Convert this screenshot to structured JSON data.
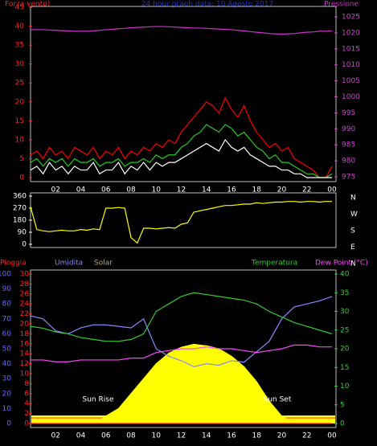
{
  "chart_data": [
    {
      "type": "line",
      "title": "24 hour graph data: 10 Agosto 2017",
      "y_label": "Forza vento)",
      "y2_label": "Pressione",
      "axis_colors": {
        "y": "#ff2222",
        "y2": "#cc44cc"
      },
      "x": [
        0,
        0.5,
        1,
        1.5,
        2,
        2.5,
        3,
        3.5,
        4,
        4.5,
        5,
        5.5,
        6,
        6.5,
        7,
        7.5,
        8,
        8.5,
        9,
        9.5,
        10,
        10.5,
        11,
        11.5,
        12,
        12.5,
        13,
        13.5,
        14,
        14.5,
        15,
        15.5,
        16,
        16.5,
        17,
        17.5,
        18,
        18.5,
        19,
        19.5,
        20,
        20.5,
        21,
        21.5,
        22,
        22.5,
        23,
        23.5,
        24
      ],
      "xlim": [
        0,
        24
      ],
      "xticks": [
        {
          "value": 2,
          "label": "02"
        },
        {
          "value": 4,
          "label": "04"
        },
        {
          "value": 6,
          "label": "06"
        },
        {
          "value": 8,
          "label": "08"
        },
        10,
        12,
        14,
        16,
        18,
        20,
        22,
        {
          "value": 24,
          "label": "00"
        }
      ],
      "ylim": [
        0,
        45
      ],
      "yticks": [
        0,
        5,
        10,
        15,
        20,
        25,
        30,
        35,
        40,
        45
      ],
      "y2lim": [
        975,
        1025
      ],
      "y2ticks": [
        975,
        980,
        985,
        990,
        995,
        1000,
        1005,
        1010,
        1015,
        1020,
        1025
      ],
      "series": [
        {
          "color": "#ff0000",
          "axis": "y",
          "values": [
            6,
            7,
            5,
            8,
            6,
            7,
            5,
            8,
            7,
            6,
            8,
            5,
            7,
            6,
            8,
            5,
            7,
            6,
            8,
            7,
            9,
            8,
            10,
            9,
            12,
            14,
            16,
            18,
            20,
            19,
            17,
            21,
            18,
            16,
            19,
            15,
            12,
            10,
            8,
            9,
            7,
            8,
            5,
            4,
            3,
            2,
            0,
            0,
            3
          ]
        },
        {
          "color": "#22cc22",
          "axis": "y",
          "values": [
            4,
            5,
            3,
            5,
            4,
            5,
            3,
            5,
            4,
            4,
            5,
            3,
            4,
            4,
            5,
            3,
            4,
            4,
            5,
            4,
            6,
            5,
            6,
            6,
            8,
            9,
            11,
            12,
            14,
            13,
            12,
            14,
            13,
            11,
            12,
            10,
            8,
            7,
            5,
            6,
            4,
            4,
            3,
            2,
            1,
            1,
            0,
            0,
            1
          ]
        },
        {
          "color": "#ffffff",
          "axis": "y",
          "values": [
            2,
            3,
            1,
            4,
            2,
            3,
            1,
            3,
            2,
            2,
            4,
            1,
            2,
            2,
            4,
            1,
            3,
            2,
            4,
            2,
            4,
            3,
            4,
            4,
            5,
            6,
            7,
            8,
            9,
            8,
            7,
            10,
            8,
            7,
            8,
            6,
            5,
            4,
            3,
            3,
            2,
            2,
            1,
            1,
            0,
            0,
            0,
            0,
            0
          ]
        },
        {
          "color": "#cc33cc",
          "axis": "y2",
          "values": [
            1021,
            1021,
            1021,
            1020.9,
            1020.8,
            1020.7,
            1020.6,
            1020.5,
            1020.5,
            1020.5,
            1020.6,
            1020.8,
            1021,
            1021.1,
            1021.3,
            1021.4,
            1021.6,
            1021.7,
            1021.8,
            1021.9,
            1022,
            1022,
            1021.9,
            1021.8,
            1021.7,
            1021.6,
            1021.5,
            1021.5,
            1021.4,
            1021.3,
            1021.2,
            1021.1,
            1021,
            1020.8,
            1020.6,
            1020.4,
            1020.2,
            1020,
            1019.8,
            1019.7,
            1019.6,
            1019.7,
            1019.8,
            1020,
            1020.2,
            1020.3,
            1020.5,
            1020.5,
            1020.6
          ]
        }
      ]
    },
    {
      "type": "line",
      "axis_colors": {
        "y": "#ffffff",
        "y2": "#ffffff"
      },
      "x": [
        0,
        0.5,
        1,
        1.5,
        2,
        2.5,
        3,
        3.5,
        4,
        4.5,
        5,
        5.5,
        6,
        6.5,
        7,
        7.5,
        8,
        8.5,
        9,
        9.5,
        10,
        10.5,
        11,
        11.5,
        12,
        12.5,
        13,
        13.5,
        14,
        14.5,
        15,
        15.5,
        16,
        16.5,
        17,
        17.5,
        18,
        18.5,
        19,
        19.5,
        20,
        20.5,
        21,
        21.5,
        22,
        22.5,
        23,
        23.5,
        24
      ],
      "xlim": [
        0,
        24
      ],
      "ylim": [
        0,
        360
      ],
      "yticks": [
        0,
        90,
        180,
        270,
        360
      ],
      "y2lim": [
        0,
        360
      ],
      "y2ticks": [
        {
          "value": 0,
          "label": "N"
        },
        {
          "value": 90,
          "label": "E"
        },
        {
          "value": 180,
          "label": "S"
        },
        {
          "value": 270,
          "label": "W"
        },
        {
          "value": 360,
          "label": "N"
        }
      ],
      "series": [
        {
          "color": "#ffff00",
          "axis": "y",
          "values": [
            280,
            110,
            100,
            95,
            100,
            105,
            100,
            100,
            110,
            105,
            115,
            110,
            270,
            270,
            275,
            270,
            50,
            10,
            120,
            120,
            115,
            120,
            125,
            120,
            150,
            160,
            240,
            250,
            260,
            270,
            280,
            290,
            290,
            295,
            300,
            300,
            310,
            305,
            310,
            315,
            315,
            320,
            320,
            315,
            320,
            320,
            315,
            320,
            320
          ]
        }
      ]
    },
    {
      "type": "line",
      "axis_colors": {
        "y": "#6666ff",
        "y2": "#33cc33",
        "y3": "#ff2222"
      },
      "x": [
        0,
        1,
        2,
        3,
        4,
        5,
        6,
        7,
        8,
        9,
        10,
        11,
        12,
        13,
        14,
        15,
        16,
        17,
        18,
        19,
        20,
        21,
        22,
        23,
        24
      ],
      "xlim": [
        0,
        24
      ],
      "xticks": [
        {
          "value": 2,
          "label": "02"
        },
        {
          "value": 4,
          "label": "04"
        },
        {
          "value": 6,
          "label": "06"
        },
        {
          "value": 8,
          "label": "08"
        },
        10,
        12,
        14,
        16,
        18,
        20,
        22,
        {
          "value": 24,
          "label": "00"
        }
      ],
      "ylim": [
        0,
        100
      ],
      "yticks": [
        0,
        10,
        20,
        30,
        40,
        50,
        60,
        70,
        80,
        90,
        100
      ],
      "y3lim": [
        0,
        30
      ],
      "y3ticks": [
        0,
        2,
        4,
        6,
        8,
        10,
        12,
        14,
        16,
        18,
        20,
        22,
        24,
        26,
        28,
        30
      ],
      "y2lim": [
        0,
        40
      ],
      "y2ticks": [
        0,
        5,
        10,
        15,
        20,
        25,
        30,
        35,
        40
      ],
      "annotations": [
        "Sun Rise",
        "Sun Set"
      ],
      "series": [
        {
          "name": "Solar",
          "color": "#ffff00",
          "legend_color": "#b8a878",
          "axis": "y",
          "fill": true,
          "values": [
            0,
            0,
            0,
            0,
            0,
            0,
            5,
            10,
            20,
            30,
            40,
            47,
            51,
            53,
            52,
            50,
            45,
            38,
            28,
            15,
            5,
            0,
            0,
            0,
            0
          ]
        },
        {
          "name": "Pioggia",
          "color": "#ff2222",
          "axis": "y3",
          "values": [
            0,
            0,
            0,
            0,
            0,
            0,
            0,
            0,
            0,
            0,
            0,
            0,
            0,
            0,
            0,
            0,
            0,
            0,
            0,
            0,
            0,
            0,
            0,
            0,
            0
          ]
        },
        {
          "name": "Umidita",
          "color": "#8888ff",
          "axis": "y",
          "values": [
            72,
            70,
            62,
            60,
            64,
            66,
            66,
            65,
            64,
            70,
            50,
            45,
            42,
            38,
            40,
            39,
            42,
            41,
            48,
            55,
            70,
            78,
            80,
            82,
            85
          ]
        },
        {
          "name": "Temperatura",
          "color": "#33cc33",
          "axis": "y2",
          "values": [
            26,
            25.5,
            24.5,
            24,
            23,
            22.5,
            22,
            22,
            22.5,
            24,
            30,
            32,
            34,
            35,
            34.5,
            34,
            33.5,
            33,
            32,
            30,
            28.5,
            27,
            26,
            25,
            24
          ]
        },
        {
          "name": "Dew Point (°C)",
          "color": "#ff44ff",
          "axis": "y2",
          "values": [
            17,
            17,
            16.5,
            16.5,
            17,
            17,
            17,
            17,
            17.5,
            17.5,
            19,
            19.5,
            20,
            20,
            20.5,
            20,
            20,
            19.5,
            19,
            19.5,
            20,
            21,
            21,
            20.5,
            20.5
          ]
        }
      ]
    }
  ]
}
